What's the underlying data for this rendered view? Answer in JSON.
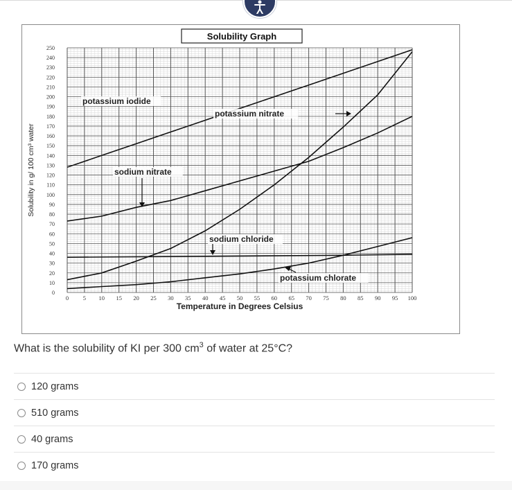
{
  "question": {
    "prefix": "What is the solubility of KI per 300 cm",
    "sup": "3",
    "suffix": " of water at 25°C?"
  },
  "choices": [
    {
      "label": "120 grams"
    },
    {
      "label": "510 grams"
    },
    {
      "label": "40 grams"
    },
    {
      "label": "170 grams"
    }
  ],
  "chart_data": {
    "type": "line",
    "title": "Solubility Graph",
    "xlabel": "Temperature in Degrees Celsius",
    "ylabel": "Solubility in g/ 100 cm³ water",
    "xlim": [
      0,
      100
    ],
    "ylim": [
      0,
      250
    ],
    "x_ticks": [
      "0",
      "5",
      "10",
      "15",
      "20",
      "25",
      "30",
      "35",
      "40",
      "45",
      "50",
      "55",
      "60",
      "65",
      "70",
      "75",
      "80",
      "85",
      "90",
      "95",
      "100"
    ],
    "y_ticks": [
      "0",
      "10",
      "20",
      "30",
      "40",
      "50",
      "60",
      "70",
      "80",
      "90",
      "100",
      "110",
      "120",
      "130",
      "140",
      "150",
      "160",
      "170",
      "180",
      "190",
      "200",
      "210",
      "220",
      "230",
      "240",
      "250"
    ],
    "grid": true,
    "series": [
      {
        "name": "potassium iodide",
        "points": [
          [
            0,
            128
          ],
          [
            10,
            140
          ],
          [
            20,
            152
          ],
          [
            30,
            164
          ],
          [
            40,
            176
          ],
          [
            50,
            188
          ],
          [
            60,
            200
          ],
          [
            70,
            212
          ],
          [
            80,
            224
          ],
          [
            90,
            236
          ],
          [
            100,
            248
          ]
        ]
      },
      {
        "name": "potassium nitrate",
        "points": [
          [
            0,
            13
          ],
          [
            10,
            20
          ],
          [
            20,
            32
          ],
          [
            30,
            45
          ],
          [
            40,
            63
          ],
          [
            50,
            85
          ],
          [
            60,
            110
          ],
          [
            70,
            138
          ],
          [
            80,
            169
          ],
          [
            90,
            202
          ],
          [
            100,
            246
          ]
        ]
      },
      {
        "name": "sodium nitrate",
        "points": [
          [
            0,
            73
          ],
          [
            10,
            78
          ],
          [
            20,
            87
          ],
          [
            30,
            94
          ],
          [
            40,
            104
          ],
          [
            50,
            114
          ],
          [
            60,
            124
          ],
          [
            70,
            134
          ],
          [
            80,
            148
          ],
          [
            90,
            163
          ],
          [
            100,
            180
          ]
        ]
      },
      {
        "name": "sodium chloride",
        "points": [
          [
            0,
            36
          ],
          [
            20,
            36.5
          ],
          [
            40,
            37
          ],
          [
            60,
            37.5
          ],
          [
            80,
            38
          ],
          [
            100,
            39
          ]
        ]
      },
      {
        "name": "potassium chlorate",
        "points": [
          [
            0,
            4
          ],
          [
            10,
            6
          ],
          [
            20,
            8
          ],
          [
            30,
            11
          ],
          [
            40,
            15
          ],
          [
            50,
            19
          ],
          [
            60,
            24
          ],
          [
            70,
            30
          ],
          [
            80,
            38
          ],
          [
            90,
            47
          ],
          [
            100,
            56
          ]
        ]
      }
    ]
  }
}
